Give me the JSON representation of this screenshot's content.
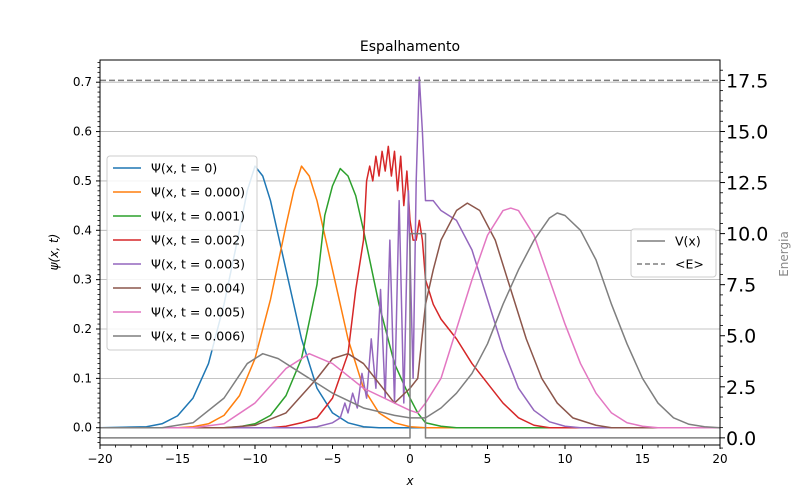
{
  "chart_data": {
    "type": "line",
    "title": "Espalhamento",
    "xlabel": "x",
    "ylabel": "ψ(x, t)",
    "ylabel_right": "Energia",
    "xlim": [
      -20,
      20
    ],
    "ylim": [
      -0.035,
      0.745
    ],
    "ylim_right": [
      -0.35,
      18.5
    ],
    "grid": "horizontal",
    "x_ticks": [
      -20,
      -15,
      -10,
      -5,
      0,
      5,
      10,
      15,
      20
    ],
    "x_tick_labels": [
      "−20",
      "−15",
      "−10",
      "−5",
      "0",
      "5",
      "10",
      "15",
      "20"
    ],
    "y_ticks": [
      0.0,
      0.1,
      0.2,
      0.3,
      0.4,
      0.5,
      0.6,
      0.7
    ],
    "y_tick_labels": [
      "0.0",
      "0.1",
      "0.2",
      "0.3",
      "0.4",
      "0.5",
      "0.6",
      "0.7"
    ],
    "y_right_ticks": [
      0.0,
      2.5,
      5.0,
      7.5,
      10.0,
      12.5,
      15.0,
      17.5
    ],
    "y_right_tick_labels": [
      "0.0",
      "2.5",
      "5.0",
      "7.5",
      "10.0",
      "12.5",
      "15.0",
      "17.5"
    ],
    "legend_left": {
      "placement": "center-left",
      "entries": [
        {
          "label": "Ψ(x, t = 0)",
          "color": "#1f77b4"
        },
        {
          "label": "Ψ(x, t = 0.000)",
          "color": "#ff7f0e"
        },
        {
          "label": "Ψ(x, t = 0.001)",
          "color": "#2ca02c"
        },
        {
          "label": "Ψ(x, t = 0.002)",
          "color": "#d62728"
        },
        {
          "label": "Ψ(x, t = 0.003)",
          "color": "#9467bd"
        },
        {
          "label": "Ψ(x, t = 0.004)",
          "color": "#8c564b"
        },
        {
          "label": "Ψ(x, t = 0.005)",
          "color": "#e377c2"
        },
        {
          "label": "Ψ(x, t = 0.006)",
          "color": "#7f7f7f"
        }
      ]
    },
    "legend_right": {
      "placement": "center-right",
      "entries": [
        {
          "label": "V(x)",
          "color": "#7f7f7f",
          "style": "solid"
        },
        {
          "label": "<E>",
          "color": "#7f7f7f",
          "style": "dashed"
        }
      ]
    },
    "series": [
      {
        "color": "#1f77b4",
        "axis": "left",
        "points": [
          [
            -20,
            0
          ],
          [
            -17,
            0.002
          ],
          [
            -16,
            0.008
          ],
          [
            -15,
            0.024
          ],
          [
            -14,
            0.06
          ],
          [
            -13,
            0.13
          ],
          [
            -12,
            0.25
          ],
          [
            -11,
            0.4
          ],
          [
            -10.5,
            0.48
          ],
          [
            -10,
            0.53
          ],
          [
            -9.5,
            0.51
          ],
          [
            -9,
            0.46
          ],
          [
            -8,
            0.32
          ],
          [
            -7,
            0.18
          ],
          [
            -6,
            0.08
          ],
          [
            -5,
            0.03
          ],
          [
            -4,
            0.01
          ],
          [
            -3,
            0.002
          ],
          [
            -2,
            0
          ],
          [
            20,
            0
          ]
        ]
      },
      {
        "color": "#ff7f0e",
        "axis": "left",
        "points": [
          [
            -20,
            0
          ],
          [
            -15,
            0
          ],
          [
            -14,
            0.002
          ],
          [
            -13,
            0.008
          ],
          [
            -12,
            0.025
          ],
          [
            -11,
            0.065
          ],
          [
            -10,
            0.14
          ],
          [
            -9,
            0.26
          ],
          [
            -8,
            0.41
          ],
          [
            -7.5,
            0.48
          ],
          [
            -7,
            0.53
          ],
          [
            -6.5,
            0.51
          ],
          [
            -6,
            0.46
          ],
          [
            -5,
            0.32
          ],
          [
            -4,
            0.18
          ],
          [
            -3,
            0.08
          ],
          [
            -2,
            0.03
          ],
          [
            -1,
            0.01
          ],
          [
            0,
            0.002
          ],
          [
            1,
            0
          ],
          [
            20,
            0
          ]
        ]
      },
      {
        "color": "#2ca02c",
        "axis": "left",
        "points": [
          [
            -20,
            0
          ],
          [
            -12,
            0
          ],
          [
            -11,
            0.002
          ],
          [
            -10,
            0.008
          ],
          [
            -9,
            0.025
          ],
          [
            -8,
            0.065
          ],
          [
            -7,
            0.14
          ],
          [
            -6,
            0.29
          ],
          [
            -5.5,
            0.43
          ],
          [
            -5,
            0.49
          ],
          [
            -4.5,
            0.525
          ],
          [
            -4,
            0.51
          ],
          [
            -3.5,
            0.47
          ],
          [
            -3,
            0.4
          ],
          [
            -2,
            0.25
          ],
          [
            -1,
            0.13
          ],
          [
            0,
            0.06
          ],
          [
            0.5,
            0.03
          ],
          [
            1,
            0.01
          ],
          [
            2,
            0.003
          ],
          [
            3,
            0
          ],
          [
            20,
            0
          ]
        ]
      },
      {
        "color": "#d62728",
        "axis": "left",
        "points": [
          [
            -20,
            0
          ],
          [
            -9,
            0
          ],
          [
            -8,
            0.003
          ],
          [
            -7,
            0.01
          ],
          [
            -6,
            0.02
          ],
          [
            -5,
            0.06
          ],
          [
            -4,
            0.15
          ],
          [
            -3.5,
            0.28
          ],
          [
            -3,
            0.38
          ],
          [
            -2.8,
            0.5
          ],
          [
            -2.6,
            0.53
          ],
          [
            -2.4,
            0.5
          ],
          [
            -2.2,
            0.55
          ],
          [
            -2,
            0.51
          ],
          [
            -1.8,
            0.56
          ],
          [
            -1.6,
            0.52
          ],
          [
            -1.4,
            0.57
          ],
          [
            -1.2,
            0.51
          ],
          [
            -1,
            0.56
          ],
          [
            -0.8,
            0.48
          ],
          [
            -0.6,
            0.55
          ],
          [
            -0.4,
            0.45
          ],
          [
            -0.2,
            0.52
          ],
          [
            0,
            0.42
          ],
          [
            0.2,
            0.38
          ],
          [
            0.4,
            0.38
          ],
          [
            0.6,
            0.42
          ],
          [
            0.8,
            0.38
          ],
          [
            1,
            0.3
          ],
          [
            1.2,
            0.28
          ],
          [
            1.5,
            0.25
          ],
          [
            2,
            0.22
          ],
          [
            3,
            0.18
          ],
          [
            4,
            0.13
          ],
          [
            5,
            0.09
          ],
          [
            6,
            0.05
          ],
          [
            7,
            0.02
          ],
          [
            8,
            0.005
          ],
          [
            9,
            0
          ],
          [
            20,
            0
          ]
        ]
      },
      {
        "color": "#9467bd",
        "axis": "left",
        "points": [
          [
            -20,
            0
          ],
          [
            -7,
            0
          ],
          [
            -6,
            0.002
          ],
          [
            -5,
            0.01
          ],
          [
            -4.5,
            0.02
          ],
          [
            -4.2,
            0.05
          ],
          [
            -4,
            0.03
          ],
          [
            -3.7,
            0.07
          ],
          [
            -3.4,
            0.04
          ],
          [
            -3.1,
            0.11
          ],
          [
            -2.8,
            0.06
          ],
          [
            -2.5,
            0.18
          ],
          [
            -2.2,
            0.08
          ],
          [
            -1.9,
            0.28
          ],
          [
            -1.6,
            0.06
          ],
          [
            -1.3,
            0.38
          ],
          [
            -1,
            0.05
          ],
          [
            -0.7,
            0.46
          ],
          [
            -0.4,
            0.05
          ],
          [
            -0.1,
            0.48
          ],
          [
            0.2,
            0.1
          ],
          [
            0.4,
            0.5
          ],
          [
            0.6,
            0.71
          ],
          [
            0.8,
            0.6
          ],
          [
            1,
            0.46
          ],
          [
            1.5,
            0.46
          ],
          [
            2,
            0.44
          ],
          [
            3,
            0.42
          ],
          [
            4,
            0.36
          ],
          [
            5,
            0.26
          ],
          [
            6,
            0.16
          ],
          [
            7,
            0.08
          ],
          [
            8,
            0.035
          ],
          [
            9,
            0.012
          ],
          [
            10,
            0.003
          ],
          [
            11,
            0
          ],
          [
            20,
            0
          ]
        ]
      },
      {
        "color": "#8c564b",
        "axis": "left",
        "points": [
          [
            -20,
            0
          ],
          [
            -12,
            0
          ],
          [
            -10,
            0.005
          ],
          [
            -8,
            0.03
          ],
          [
            -6,
            0.1
          ],
          [
            -5,
            0.14
          ],
          [
            -4,
            0.15
          ],
          [
            -3,
            0.13
          ],
          [
            -2,
            0.09
          ],
          [
            -1,
            0.05
          ],
          [
            0,
            0.08
          ],
          [
            0.5,
            0.1
          ],
          [
            1,
            0.25
          ],
          [
            1.5,
            0.32
          ],
          [
            2,
            0.38
          ],
          [
            3,
            0.44
          ],
          [
            3.7,
            0.455
          ],
          [
            4.5,
            0.44
          ],
          [
            5.5,
            0.38
          ],
          [
            6.5,
            0.28
          ],
          [
            7.5,
            0.18
          ],
          [
            8.5,
            0.1
          ],
          [
            9.5,
            0.05
          ],
          [
            10.5,
            0.02
          ],
          [
            12,
            0.005
          ],
          [
            13,
            0
          ],
          [
            20,
            0
          ]
        ]
      },
      {
        "color": "#e377c2",
        "axis": "left",
        "points": [
          [
            -20,
            0
          ],
          [
            -14,
            0
          ],
          [
            -12,
            0.008
          ],
          [
            -10,
            0.05
          ],
          [
            -8,
            0.12
          ],
          [
            -6.5,
            0.15
          ],
          [
            -5,
            0.13
          ],
          [
            -3,
            0.08
          ],
          [
            -1,
            0.05
          ],
          [
            0,
            0.035
          ],
          [
            0.5,
            0.03
          ],
          [
            1,
            0.05
          ],
          [
            2,
            0.1
          ],
          [
            3,
            0.2
          ],
          [
            4,
            0.3
          ],
          [
            5,
            0.39
          ],
          [
            6,
            0.44
          ],
          [
            6.5,
            0.445
          ],
          [
            7,
            0.44
          ],
          [
            8,
            0.39
          ],
          [
            9,
            0.3
          ],
          [
            10,
            0.21
          ],
          [
            11,
            0.13
          ],
          [
            12,
            0.07
          ],
          [
            13,
            0.03
          ],
          [
            14,
            0.01
          ],
          [
            15,
            0.003
          ],
          [
            16,
            0
          ],
          [
            20,
            0
          ]
        ]
      },
      {
        "color": "#7f7f7f",
        "axis": "left",
        "points": [
          [
            -20,
            0
          ],
          [
            -16,
            0
          ],
          [
            -14,
            0.01
          ],
          [
            -12,
            0.06
          ],
          [
            -10.5,
            0.13
          ],
          [
            -9.5,
            0.15
          ],
          [
            -8.5,
            0.14
          ],
          [
            -7,
            0.11
          ],
          [
            -5,
            0.07
          ],
          [
            -3,
            0.04
          ],
          [
            -1,
            0.025
          ],
          [
            0,
            0.02
          ],
          [
            1,
            0.02
          ],
          [
            2,
            0.04
          ],
          [
            3,
            0.07
          ],
          [
            4,
            0.11
          ],
          [
            5,
            0.17
          ],
          [
            6,
            0.25
          ],
          [
            7,
            0.32
          ],
          [
            8,
            0.38
          ],
          [
            9,
            0.425
          ],
          [
            9.5,
            0.435
          ],
          [
            10,
            0.43
          ],
          [
            11,
            0.4
          ],
          [
            12,
            0.34
          ],
          [
            13,
            0.25
          ],
          [
            14,
            0.17
          ],
          [
            15,
            0.1
          ],
          [
            16,
            0.05
          ],
          [
            17,
            0.02
          ],
          [
            18,
            0.007
          ],
          [
            19,
            0.002
          ],
          [
            20,
            0
          ]
        ]
      },
      {
        "color": "#7f7f7f",
        "axis": "right",
        "style": "solid",
        "points": [
          [
            -20,
            0
          ],
          [
            0,
            0
          ],
          [
            0,
            10
          ],
          [
            1,
            10
          ],
          [
            1,
            0
          ],
          [
            20,
            0
          ]
        ]
      },
      {
        "color": "#7f7f7f",
        "axis": "right",
        "style": "dashed",
        "points": [
          [
            -20,
            17.5
          ],
          [
            20,
            17.5
          ]
        ]
      }
    ]
  }
}
